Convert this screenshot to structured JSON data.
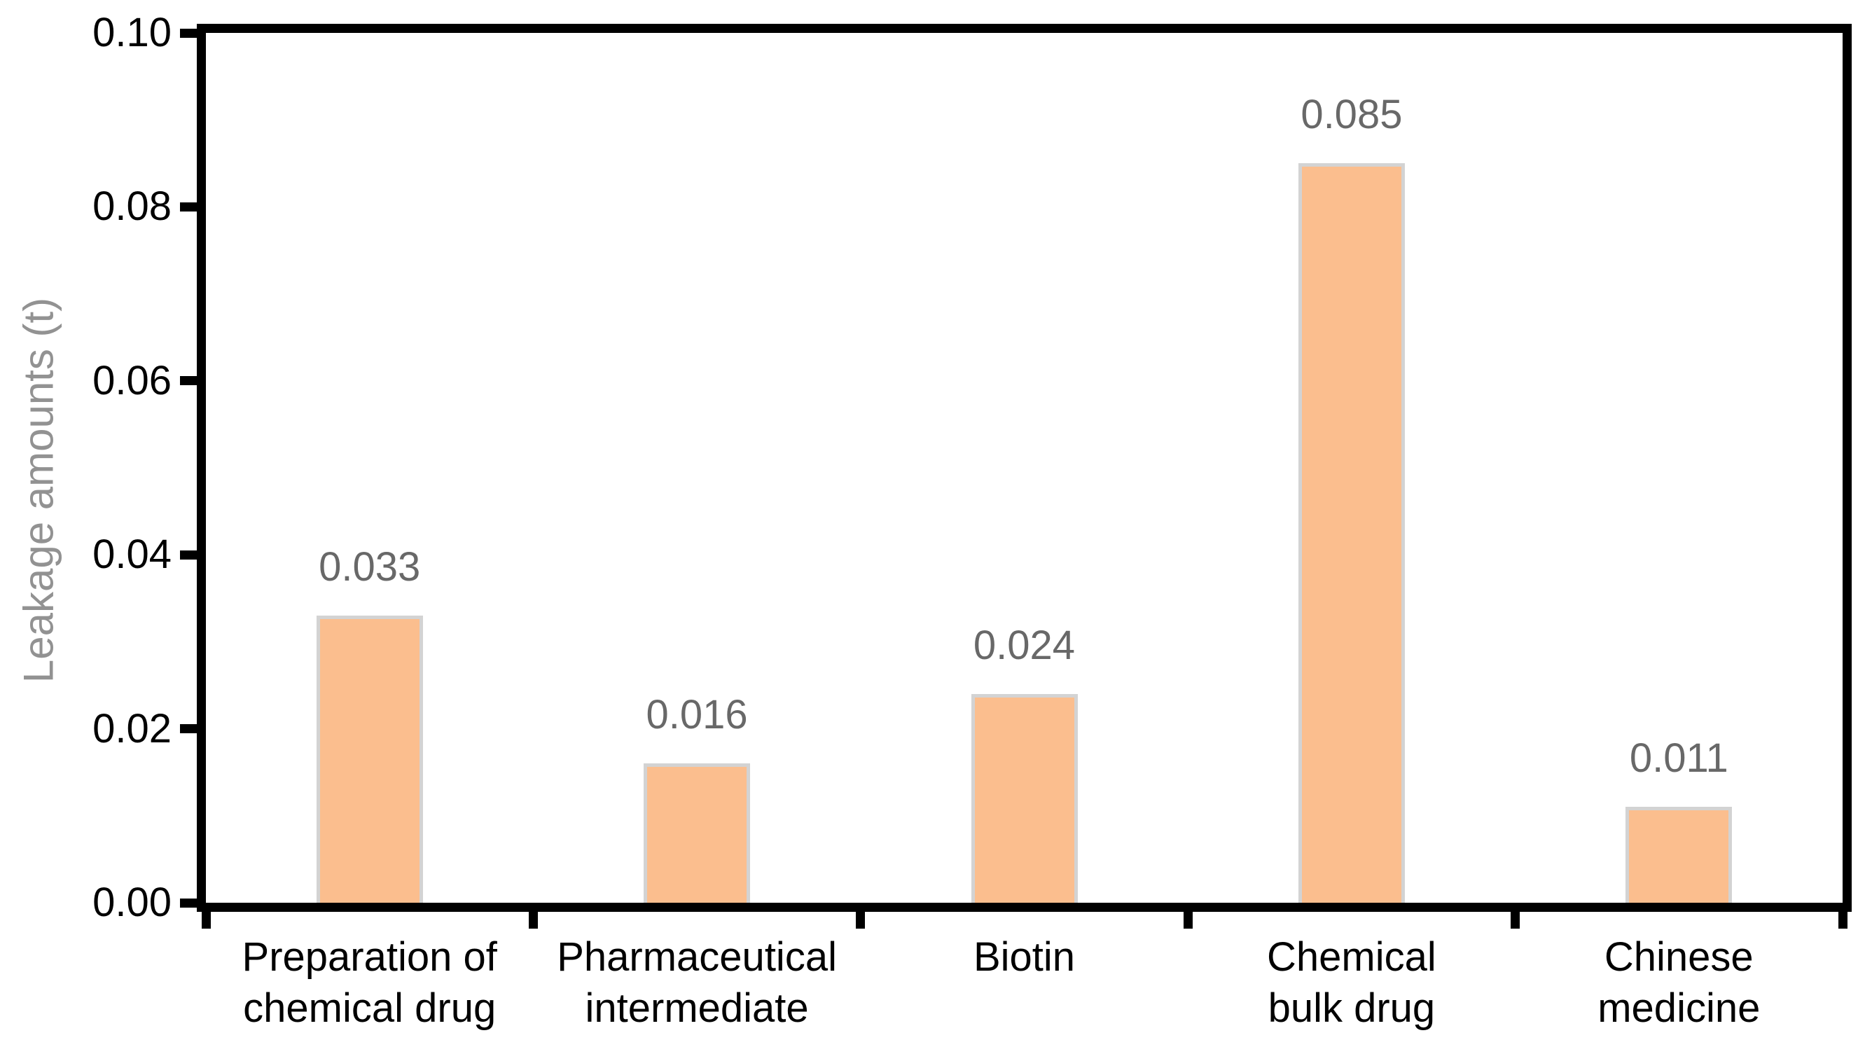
{
  "figure": {
    "background": "#ffffff"
  },
  "chart_data": {
    "type": "bar",
    "title": "",
    "xlabel": "",
    "ylabel": "Leakage amounts (t)",
    "categories": [
      "Preparation of\nchemical drug",
      "Pharmaceutical\nintermediate",
      "Biotin",
      "Chemical\nbulk drug",
      "Chinese\nmedicine"
    ],
    "values": [
      0.033,
      0.016,
      0.024,
      0.085,
      0.011
    ],
    "bar_labels": [
      "0.033",
      "0.016",
      "0.024",
      "0.085",
      "0.011"
    ],
    "ylim": [
      0,
      0.1
    ],
    "yticks": [
      0.0,
      0.02,
      0.04,
      0.06,
      0.08,
      0.1
    ],
    "ytick_labels": [
      "0.00",
      "0.02",
      "0.04",
      "0.06",
      "0.08",
      "0.10"
    ],
    "grid": false,
    "legend_position": "none",
    "colors": {
      "bar_fill": "#FBBE8E",
      "bar_border": "#D3D3D3",
      "bar_value_label": "#686868",
      "axis_frame": "#000000",
      "tick_label": "#000000",
      "category_label": "#000000",
      "y_axis_title": "#929292"
    }
  }
}
